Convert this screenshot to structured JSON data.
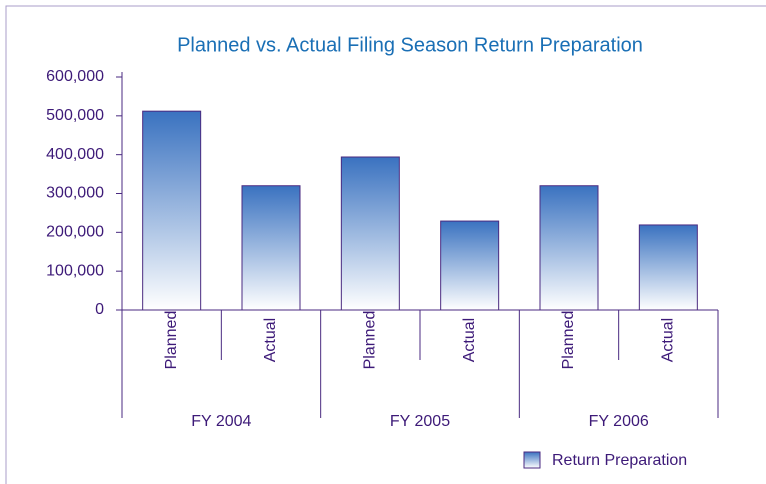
{
  "chart_data": {
    "type": "bar",
    "title": "Planned vs. Actual Filing Season Return Preparation",
    "categories": [
      "Planned",
      "Actual",
      "Planned",
      "Actual",
      "Planned",
      "Actual"
    ],
    "groups": [
      "FY 2004",
      "FY 2005",
      "FY 2006"
    ],
    "series": [
      {
        "name": "Return Preparation",
        "color": "#3a72c0",
        "values": [
          512000,
          320000,
          394000,
          229000,
          320000,
          219000
        ]
      }
    ],
    "ylim": [
      0,
      600000
    ],
    "yticks": [
      0,
      {
        "value": 100000,
        "label": "100,000"
      },
      {
        "value": 200000,
        "label": "200,000"
      },
      {
        "value": 300000,
        "label": "300,000"
      },
      {
        "value": 400000,
        "label": "400,000"
      },
      {
        "value": 500000,
        "label": "500,000"
      },
      {
        "value": 600000,
        "label": "600,000"
      }
    ],
    "legend": "bottom-right"
  }
}
